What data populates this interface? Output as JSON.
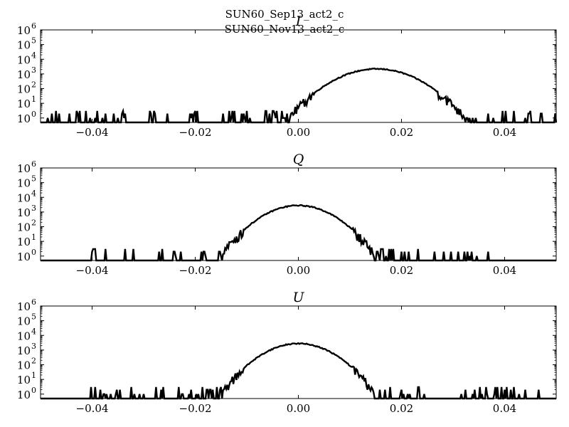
{
  "figure": {
    "suptitle_lines": [
      "SUN60_Sep13_act2_c",
      "SUN60_Nov13_act2_c"
    ]
  },
  "chart_data": [
    {
      "type": "histogram",
      "title": "I",
      "title_style": "italic",
      "xlim": [
        -0.05,
        0.05
      ],
      "ylim": [
        0.5,
        1000000
      ],
      "yscale": "log",
      "x_ticks": [
        -0.04,
        -0.02,
        0.0,
        0.02,
        0.04
      ],
      "x_tick_labels": [
        "−0.04",
        "−0.02",
        "0.00",
        "0.02",
        "0.04"
      ],
      "y_ticks": [
        1,
        10,
        100,
        1000,
        10000,
        100000,
        1000000
      ],
      "y_tick_exponents": [
        "0",
        "1",
        "2",
        "3",
        "4",
        "5",
        "6"
      ],
      "distribution": {
        "shape": "gaussian",
        "peak_center": 0.0152,
        "peak_count": 2200,
        "sigma": 0.0044,
        "tail_range": [
          -0.05,
          0.05
        ]
      },
      "line_color": "#000000",
      "grid": false
    },
    {
      "type": "histogram",
      "title": "Q",
      "title_style": "italic",
      "xlim": [
        -0.05,
        0.05
      ],
      "ylim": [
        0.5,
        1000000
      ],
      "yscale": "log",
      "x_ticks": [
        -0.04,
        -0.02,
        0.0,
        0.02,
        0.04
      ],
      "x_tick_labels": [
        "−0.04",
        "−0.02",
        "0.00",
        "0.02",
        "0.04"
      ],
      "y_ticks": [
        1,
        10,
        100,
        1000,
        10000,
        100000,
        1000000
      ],
      "y_tick_exponents": [
        "0",
        "1",
        "2",
        "3",
        "4",
        "5",
        "6"
      ],
      "distribution": {
        "shape": "gaussian",
        "peak_center": 0.0,
        "peak_count": 2800,
        "sigma": 0.0038,
        "tail_range": [
          -0.045,
          0.037
        ]
      },
      "line_color": "#000000",
      "grid": false
    },
    {
      "type": "histogram",
      "title": "U",
      "title_style": "italic",
      "xlim": [
        -0.05,
        0.05
      ],
      "ylim": [
        0.5,
        1000000
      ],
      "yscale": "log",
      "x_ticks": [
        -0.04,
        -0.02,
        0.0,
        0.02,
        0.04
      ],
      "x_tick_labels": [
        "−0.04",
        "−0.02",
        "0.00",
        "0.02",
        "0.04"
      ],
      "y_ticks": [
        1,
        10,
        100,
        1000,
        10000,
        100000,
        1000000
      ],
      "y_tick_exponents": [
        "0",
        "1",
        "2",
        "3",
        "4",
        "5",
        "6"
      ],
      "distribution": {
        "shape": "gaussian",
        "peak_center": 0.0,
        "peak_count": 2800,
        "sigma": 0.0038,
        "tail_range": [
          -0.043,
          0.047
        ]
      },
      "line_color": "#000000",
      "grid": false
    }
  ]
}
